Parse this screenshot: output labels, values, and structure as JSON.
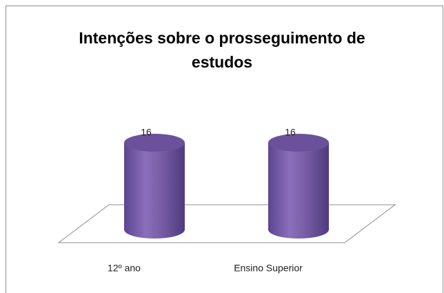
{
  "chart_data": {
    "type": "bar",
    "title": "Intenções sobre o prosseguimento de estudos",
    "categories": [
      "12º ano",
      "Ensino Superior"
    ],
    "values": [
      16,
      16
    ],
    "color": "#7a5fa6"
  }
}
